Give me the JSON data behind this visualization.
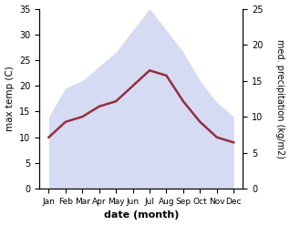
{
  "months": [
    "Jan",
    "Feb",
    "Mar",
    "Apr",
    "May",
    "Jun",
    "Jul",
    "Aug",
    "Sep",
    "Oct",
    "Nov",
    "Dec"
  ],
  "temp": [
    10,
    13,
    14,
    16,
    17,
    20,
    23,
    22,
    17,
    13,
    10,
    9
  ],
  "precip": [
    10,
    14,
    15,
    17,
    19,
    22,
    25,
    22,
    19,
    15,
    12,
    10
  ],
  "fill_color": "#c8d0f0",
  "fill_alpha": 0.75,
  "line_color": "#943040",
  "left_ylabel": "max temp (C)",
  "right_ylabel": "med. precipitation (kg/m2)",
  "xlabel": "date (month)",
  "ylim_left": [
    0,
    35
  ],
  "ylim_right": [
    0,
    25
  ],
  "yticks_left": [
    0,
    5,
    10,
    15,
    20,
    25,
    30,
    35
  ],
  "yticks_right": [
    0,
    5,
    10,
    15,
    20,
    25
  ]
}
